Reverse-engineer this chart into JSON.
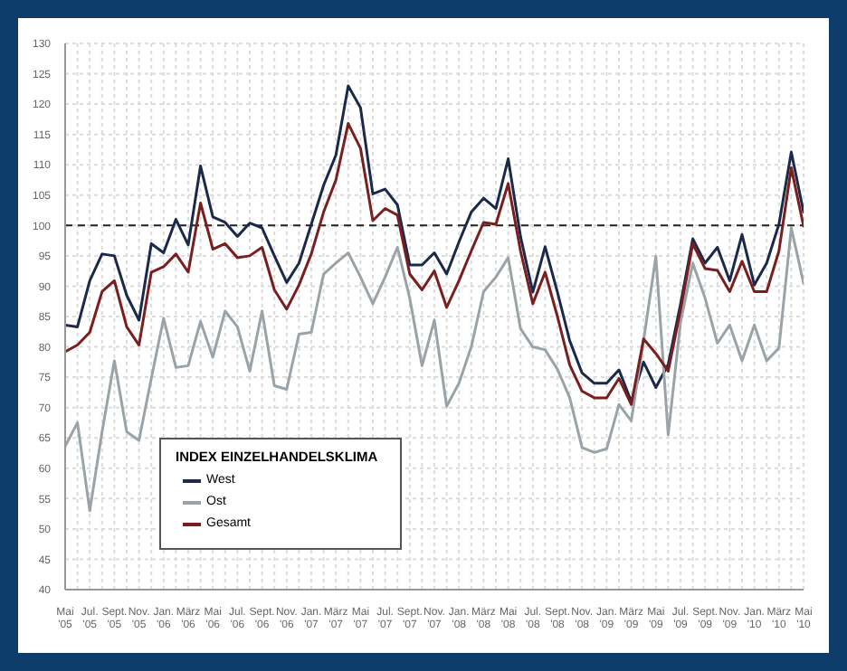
{
  "chart_data": {
    "type": "line",
    "legend_title": "INDEX EINZELHANDELSKLIMA",
    "categories": [
      "Mai '05",
      null,
      "Jul. '05",
      null,
      "Sept. '05",
      null,
      "Nov. '05",
      null,
      "Jan. '06",
      null,
      "März '06",
      null,
      "Mai '06",
      null,
      "Jul. '06",
      null,
      "Sept. '06",
      null,
      "Nov. '06",
      null,
      "Jan. '07",
      null,
      "März '07",
      null,
      "Mai '07",
      null,
      "Jul. '07",
      null,
      "Sept. '07",
      null,
      "Nov. '07",
      null,
      "Jan. '08",
      null,
      "März '08",
      null,
      "Mai '08",
      null,
      "Jul. '08",
      null,
      "Sept. '08",
      null,
      "Nov. '08",
      null,
      "Jan. '09",
      null,
      "März '09",
      null,
      "Mai '09",
      null,
      "Jul. '09",
      null,
      "Sept. '09",
      null,
      "Nov. '09",
      null,
      "Jan. '10",
      null,
      "März '10",
      null,
      "Mai '10"
    ],
    "series": [
      {
        "name": "West",
        "color": "#1b2a4a",
        "values": [
          83.6,
          83.3,
          90.9,
          95.3,
          95,
          88.5,
          84.4,
          97,
          95.5,
          101,
          96.8,
          109.8,
          101.4,
          100.5,
          98.2,
          100.4,
          99.6,
          95,
          90.6,
          93.8,
          100.2,
          106.6,
          111.6,
          123,
          119.4,
          105.2,
          106,
          103.4,
          93.5,
          93.5,
          95.5,
          92,
          97.3,
          102.2,
          104.5,
          102.8,
          111,
          98.2,
          89,
          96.5,
          89,
          81,
          75.7,
          74,
          74,
          76.2,
          71,
          77.5,
          73.3,
          77.1,
          87,
          97.8,
          93.8,
          96.4,
          90.9,
          98.5,
          90.2,
          93.8,
          100.2,
          112.1,
          102.2
        ]
      },
      {
        "name": "Ost",
        "color": "#9aa3a8",
        "values": [
          63.6,
          67.5,
          53,
          66,
          77.7,
          66,
          64.6,
          74.8,
          84.7,
          76.6,
          76.9,
          84.2,
          78.3,
          85.9,
          83.3,
          76,
          85.9,
          73.6,
          73,
          82.1,
          82.4,
          92,
          93.8,
          95.5,
          91.5,
          87.1,
          91.5,
          96.4,
          88,
          76.9,
          84.4,
          70.2,
          74,
          80,
          89.1,
          91.5,
          94.7,
          83,
          80,
          79.5,
          76.3,
          71.6,
          63.4,
          62.6,
          63.2,
          70.5,
          67.8,
          81,
          94.9,
          65.5,
          84,
          93.8,
          88,
          80.6,
          83.6,
          77.7,
          83.6,
          77.7,
          79.8,
          99.6,
          90.5
        ]
      },
      {
        "name": "Gesamt",
        "color": "#7a1f1f",
        "values": [
          79.2,
          80.3,
          82.4,
          89.1,
          90.9,
          83.3,
          80.3,
          92.3,
          93.2,
          95.3,
          92.3,
          103.7,
          96.1,
          97,
          94.7,
          95,
          96.4,
          89.4,
          86.2,
          90.2,
          95.3,
          102.2,
          107.5,
          116.8,
          112.7,
          100.8,
          102.8,
          101.7,
          92,
          89.4,
          92.5,
          86.5,
          90.9,
          95.8,
          100.5,
          100.2,
          106.9,
          95.8,
          87.1,
          92.3,
          85,
          77,
          72.7,
          71.6,
          71.6,
          74.8,
          70.5,
          81.3,
          78.9,
          76,
          86,
          97,
          92.9,
          92.6,
          89.1,
          94.1,
          89.1,
          89.1,
          95.8,
          109.5,
          99.9
        ]
      }
    ],
    "ylim": [
      40,
      130
    ],
    "yticks": [
      40,
      45,
      50,
      55,
      60,
      65,
      70,
      75,
      80,
      85,
      90,
      95,
      100,
      105,
      110,
      115,
      120,
      125,
      130
    ],
    "ref_lines": [
      {
        "axis": "y",
        "value": 100,
        "color": "#222222",
        "line_style": "dashed"
      }
    ],
    "grid": true,
    "legend": "bottom left",
    "marker": "none",
    "line_style": "solid"
  }
}
